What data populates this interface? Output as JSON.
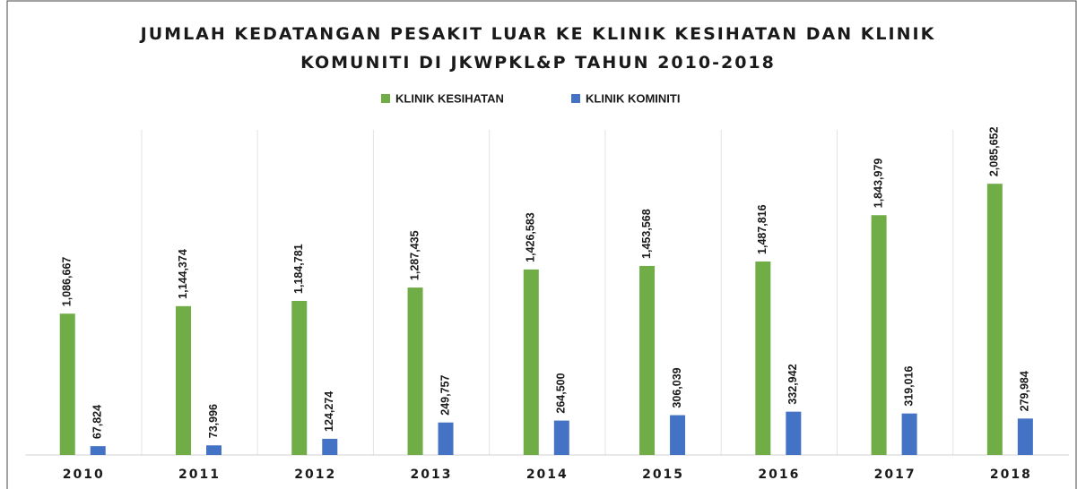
{
  "chart_data": {
    "type": "bar",
    "title": "JUMLAH KEDATANGAN PESAKIT LUAR KE KLINIK KESIHATAN DAN KLINIK KOMUNITI DI JKWPKL&P TAHUN 2010-2018",
    "categories": [
      "2010",
      "2011",
      "2012",
      "2013",
      "2014",
      "2015",
      "2016",
      "2017",
      "2018"
    ],
    "series": [
      {
        "name": "KLINIK KESIHATAN",
        "color": "#70ad47",
        "values": [
          1086667,
          1144374,
          1184781,
          1287435,
          1426583,
          1453568,
          1487816,
          1843979,
          2085652
        ],
        "value_labels": [
          "1,086,667",
          "1,144,374",
          "1,184,781",
          "1,287,435",
          "1,426,583",
          "1,453,568",
          "1,487,816",
          "1,843,979",
          "2,085,652"
        ]
      },
      {
        "name": "KLINIK KOMINITI",
        "color": "#4472c4",
        "values": [
          67824,
          73996,
          124274,
          249757,
          264500,
          306039,
          332942,
          319016,
          279984
        ],
        "value_labels": [
          "67,824",
          "73,996",
          "124,274",
          "249,757",
          "264,500",
          "306,039",
          "332,942",
          "319,016",
          "279,984"
        ]
      }
    ],
    "ylim": [
      0,
      2500000
    ],
    "grid": true,
    "legend": "top"
  }
}
